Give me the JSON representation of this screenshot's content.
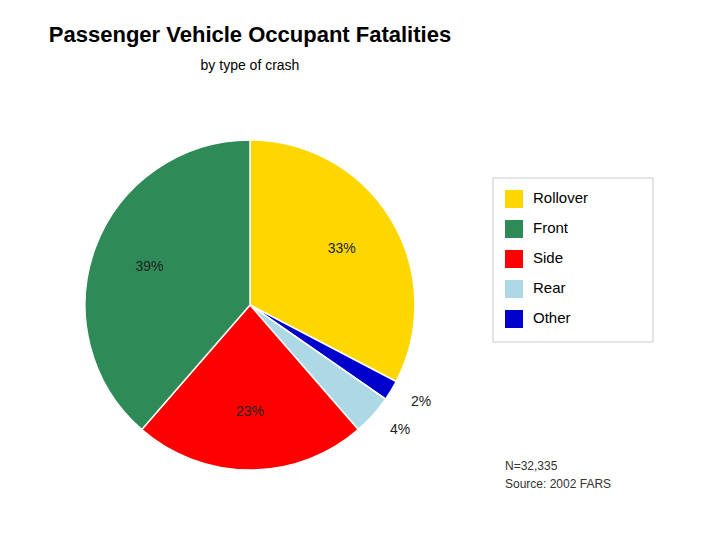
{
  "chart_data": {
    "type": "pie",
    "title": "Passenger Vehicle Occupant Fatalities",
    "subtitle": "by type of crash",
    "categories": [
      "Rollover",
      "Other",
      "Rear",
      "Side",
      "Front"
    ],
    "values": [
      33,
      2,
      4,
      23,
      39
    ],
    "value_labels": [
      "33%",
      "2%",
      "4%",
      "23%",
      "39%"
    ],
    "colors": [
      "#FFD700",
      "#0000CC",
      "#ADD8E6",
      "#FF0000",
      "#2E8B57"
    ],
    "data_labels": true,
    "legend": "right",
    "legend_labels": [
      "Rollover",
      "Front",
      "Side",
      "Rear",
      "Other"
    ],
    "legend_colors": [
      "#FFD700",
      "#2E8B57",
      "#FF0000",
      "#ADD8E6",
      "#0000CC"
    ],
    "note": [
      "N=32,335",
      "Source: 2002 FARS"
    ]
  }
}
